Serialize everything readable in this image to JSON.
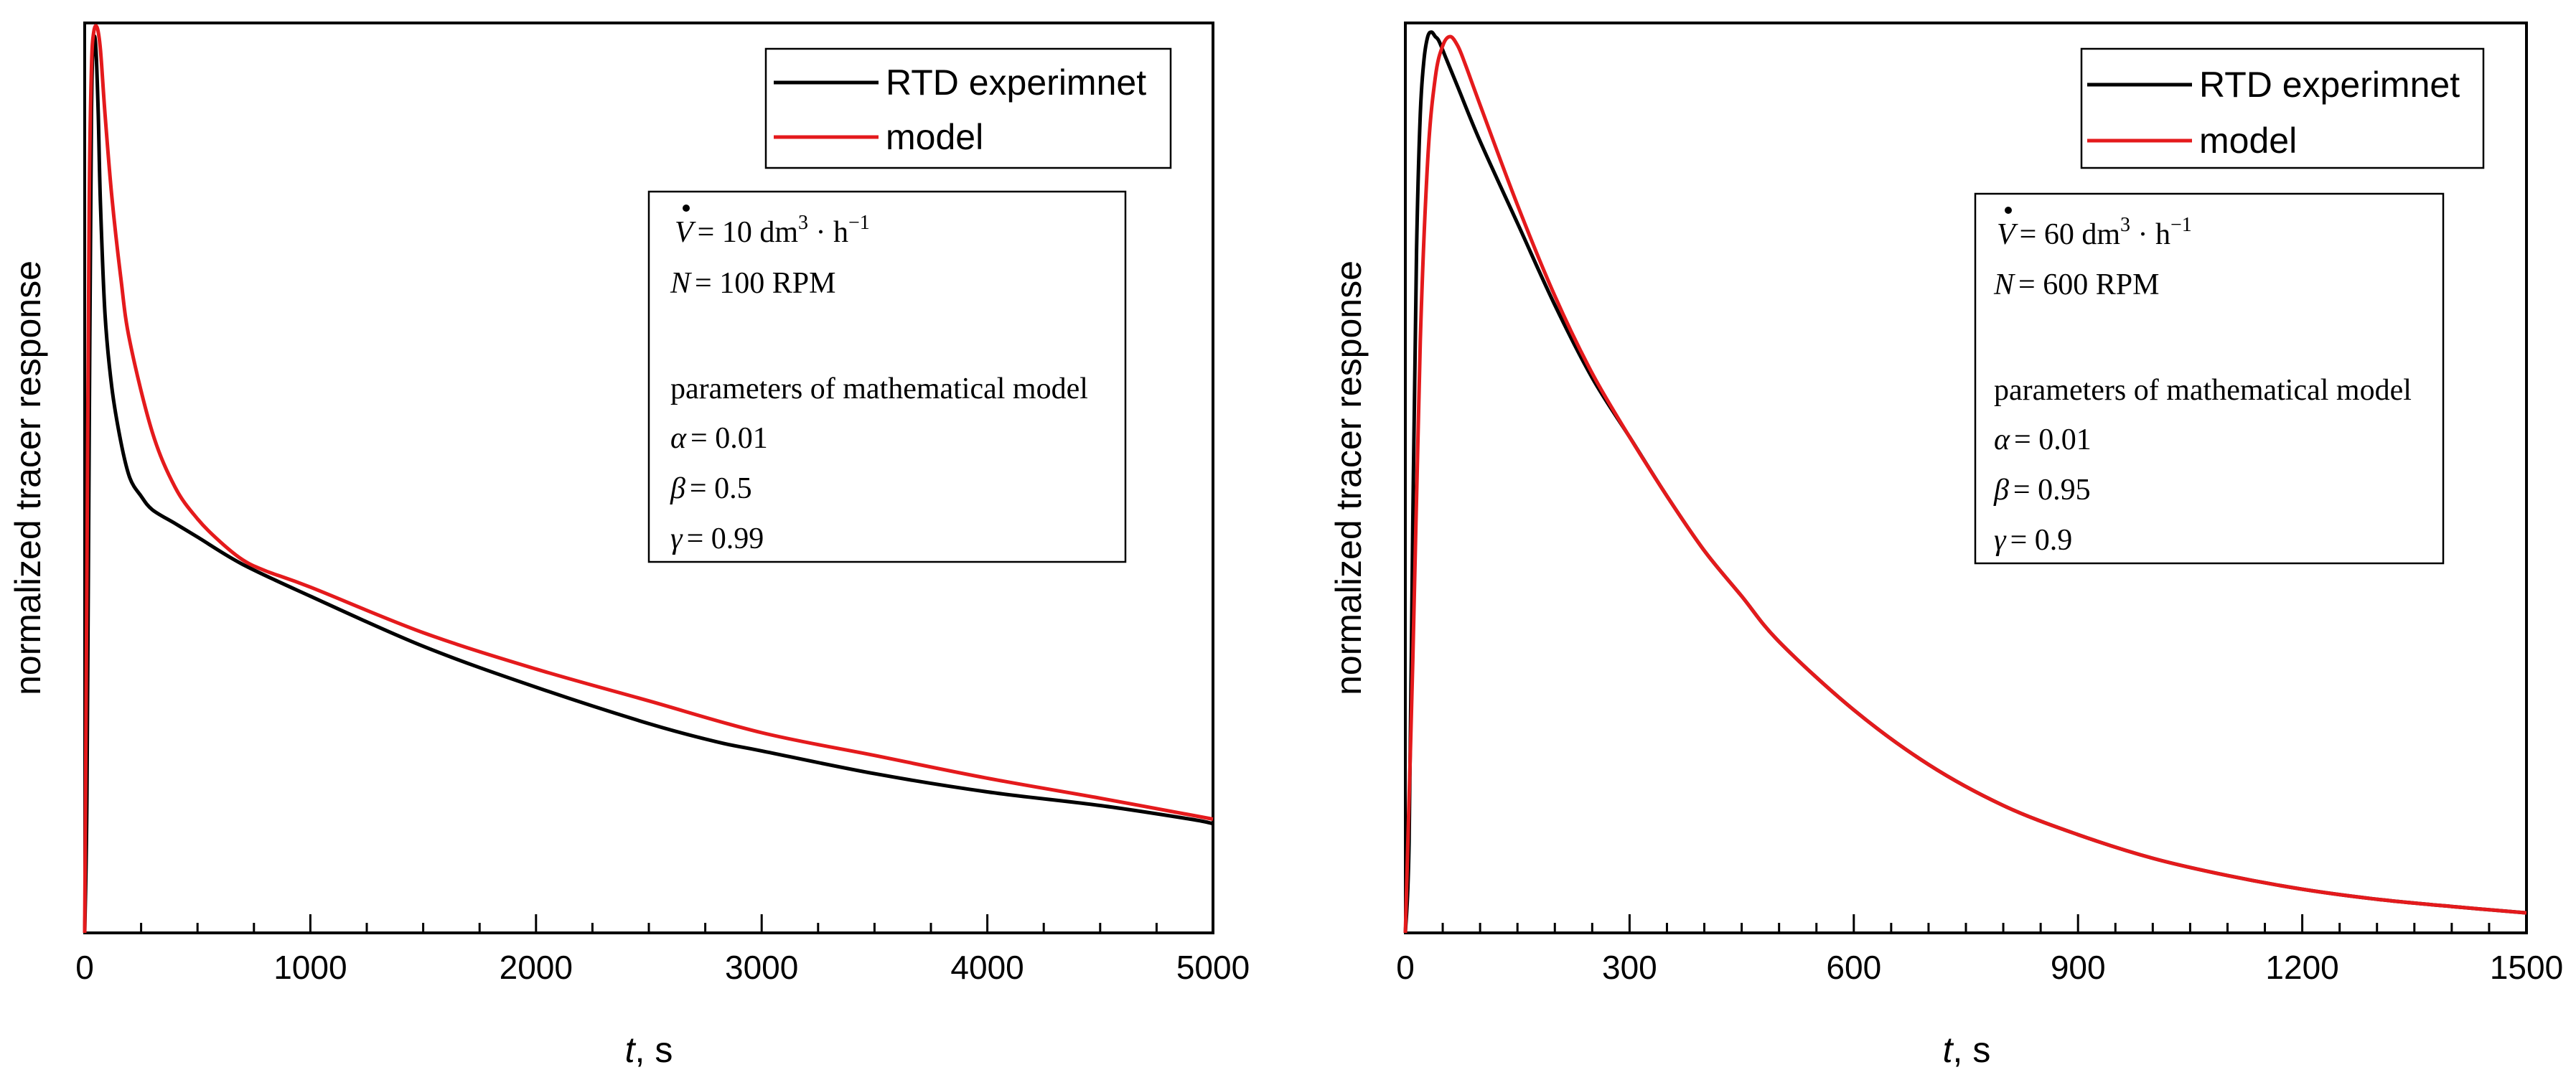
{
  "chart_data": [
    {
      "type": "line",
      "title": "",
      "xlabel_var": "t",
      "xlabel_unit": ", s",
      "ylabel": "normalized tracer response",
      "xlim": [
        0,
        5000
      ],
      "ylim": [
        0,
        1
      ],
      "x_ticks": [
        "0",
        "1000",
        "2000",
        "3000",
        "4000",
        "5000"
      ],
      "legend": {
        "entries": [
          "RTD experimnet",
          "model"
        ],
        "position": "top-right"
      },
      "conditions": {
        "flow_var": "V",
        "flow_value": "= 10 dm",
        "flow_exp": "3",
        "flow_unit": " · h",
        "flow_unit_exp": "−1",
        "speed_var": "N",
        "speed_value": "= 100 RPM",
        "params_title": "parameters of mathematical model",
        "alpha_var": "α",
        "alpha_value": "= 0.01",
        "beta_var": "β",
        "beta_value": "= 0.5",
        "gamma_var": "γ",
        "gamma_value": "= 0.99"
      },
      "series": [
        {
          "name": "RTD experimnet",
          "color": "#000000",
          "x": [
            0,
            10,
            20,
            30,
            40,
            50,
            60,
            70,
            90,
            120,
            160,
            200,
            250,
            300,
            400,
            500,
            700,
            1000,
            1500,
            2000,
            2500,
            2800,
            3000,
            3500,
            4000,
            4500,
            4900,
            5000
          ],
          "y": [
            0.0,
            0.15,
            0.55,
            0.9,
            0.98,
            0.97,
            0.9,
            0.8,
            0.68,
            0.6,
            0.54,
            0.5,
            0.48,
            0.465,
            0.45,
            0.435,
            0.405,
            0.37,
            0.315,
            0.27,
            0.23,
            0.21,
            0.2,
            0.175,
            0.155,
            0.14,
            0.125,
            0.12
          ]
        },
        {
          "name": "model",
          "color": "#e41a1c",
          "x": [
            0,
            10,
            20,
            30,
            40,
            55,
            70,
            90,
            120,
            160,
            200,
            300,
            400,
            500,
            600,
            700,
            800,
            1000,
            1500,
            2000,
            2500,
            3000,
            3500,
            4000,
            4500,
            5000
          ],
          "y": [
            0.0,
            0.4,
            0.8,
            0.95,
            0.99,
            0.995,
            0.97,
            0.9,
            0.81,
            0.72,
            0.65,
            0.55,
            0.49,
            0.455,
            0.43,
            0.41,
            0.398,
            0.38,
            0.33,
            0.29,
            0.255,
            0.22,
            0.195,
            0.17,
            0.148,
            0.125
          ]
        }
      ]
    },
    {
      "type": "line",
      "title": "",
      "xlabel_var": "t",
      "xlabel_unit": ", s",
      "ylabel": "normalized tracer response",
      "xlim": [
        0,
        1500
      ],
      "ylim": [
        0,
        1
      ],
      "x_ticks": [
        "0",
        "300",
        "600",
        "900",
        "1200",
        "1500"
      ],
      "legend": {
        "entries": [
          "RTD experimnet",
          "model"
        ],
        "position": "top-right"
      },
      "conditions": {
        "flow_var": "V",
        "flow_value": "= 60 dm",
        "flow_exp": "3",
        "flow_unit": " · h",
        "flow_unit_exp": "−1",
        "speed_var": "N",
        "speed_value": "= 600 RPM",
        "params_title": "parameters of mathematical model",
        "alpha_var": "α",
        "alpha_value": "= 0.01",
        "beta_var": "β",
        "beta_value": "= 0.95",
        "gamma_var": "γ",
        "gamma_value": "= 0.9"
      },
      "series": [
        {
          "name": "RTD experimnet",
          "color": "#000000",
          "x": [
            0,
            5,
            10,
            15,
            20,
            25,
            30,
            35,
            40,
            45,
            55,
            70,
            100,
            150,
            200,
            250,
            300,
            350,
            400,
            450,
            500,
            600,
            700,
            800,
            900,
            1000,
            1100,
            1200,
            1300,
            1400,
            1500
          ],
          "y": [
            0.0,
            0.1,
            0.45,
            0.75,
            0.9,
            0.96,
            0.985,
            0.99,
            0.985,
            0.98,
            0.96,
            0.93,
            0.87,
            0.78,
            0.69,
            0.61,
            0.545,
            0.48,
            0.42,
            0.37,
            0.32,
            0.245,
            0.185,
            0.14,
            0.108,
            0.082,
            0.063,
            0.048,
            0.037,
            0.029,
            0.022
          ]
        },
        {
          "name": "model",
          "color": "#e41a1c",
          "x": [
            0,
            10,
            20,
            30,
            40,
            50,
            60,
            70,
            80,
            100,
            150,
            200,
            250,
            300,
            350,
            400,
            450,
            500,
            600,
            700,
            800,
            900,
            1000,
            1100,
            1200,
            1300,
            1400,
            1500
          ],
          "y": [
            0.0,
            0.3,
            0.65,
            0.85,
            0.94,
            0.975,
            0.985,
            0.975,
            0.955,
            0.91,
            0.8,
            0.7,
            0.615,
            0.545,
            0.48,
            0.42,
            0.37,
            0.32,
            0.245,
            0.185,
            0.14,
            0.108,
            0.082,
            0.063,
            0.048,
            0.037,
            0.029,
            0.022
          ]
        }
      ]
    }
  ]
}
